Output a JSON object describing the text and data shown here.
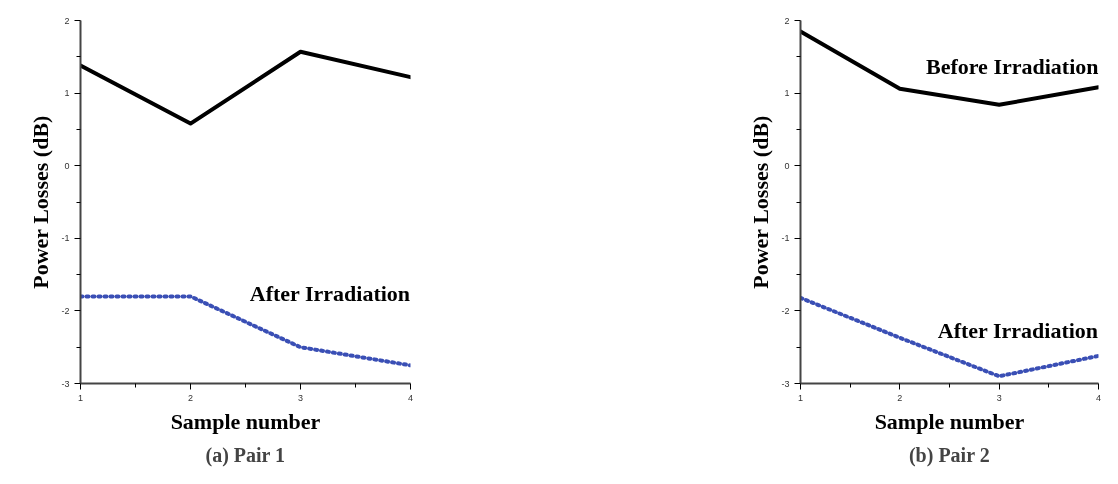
{
  "chart_data": [
    {
      "type": "line",
      "title": "(a) Pair 1",
      "xlabel": "Sample number",
      "ylabel": "Power Losses (dB)",
      "x": [
        1,
        2,
        3,
        4
      ],
      "xlim": [
        1,
        4
      ],
      "ylim": [
        -3,
        2
      ],
      "xticks": [
        1,
        {
          "value": 1.5,
          "label": null
        },
        2,
        {
          "value": 2.5,
          "label": null
        },
        3,
        {
          "value": 3.5,
          "label": null
        },
        4
      ],
      "yticks": [
        -3,
        {
          "value": -2.5,
          "label": null
        },
        -2,
        {
          "value": -1.5,
          "label": null
        },
        -1,
        {
          "value": -0.5,
          "label": null
        },
        0,
        {
          "value": 0.5,
          "label": null
        },
        1,
        {
          "value": 1.5,
          "label": null
        },
        2
      ],
      "grid": false,
      "marker": "none",
      "series": [
        {
          "color": "#000000",
          "line_style": "solid",
          "values": [
            1.38,
            0.58,
            1.57,
            1.22
          ]
        },
        {
          "name": "After Irradiation",
          "color": "#3a4fb5",
          "line_style": "dotted",
          "values": [
            -1.8,
            -1.8,
            -2.5,
            -2.75
          ]
        }
      ]
    },
    {
      "type": "line",
      "title": "(b) Pair 2",
      "xlabel": "Sample number",
      "ylabel": "Power Losses (dB)",
      "x": [
        1,
        2,
        3,
        4
      ],
      "xlim": [
        1,
        4
      ],
      "ylim": [
        -3,
        2
      ],
      "xticks": [
        1,
        {
          "value": 1.5,
          "label": null
        },
        2,
        {
          "value": 2.5,
          "label": null
        },
        3,
        {
          "value": 3.5,
          "label": null
        },
        4
      ],
      "yticks": [
        -3,
        {
          "value": -2.5,
          "label": null
        },
        -2,
        {
          "value": -1.5,
          "label": null
        },
        -1,
        {
          "value": -0.5,
          "label": null
        },
        0,
        {
          "value": 0.5,
          "label": null
        },
        1,
        {
          "value": 1.5,
          "label": null
        },
        2
      ],
      "grid": false,
      "marker": "none",
      "series": [
        {
          "name": "Before Irradiation",
          "color": "#000000",
          "line_style": "solid",
          "values": [
            1.85,
            1.06,
            0.84,
            1.08
          ]
        },
        {
          "name": "After Irradiation",
          "color": "#3a4fb5",
          "line_style": "dotted",
          "values": [
            -1.82,
            -2.37,
            -2.9,
            -2.62
          ]
        }
      ]
    }
  ]
}
